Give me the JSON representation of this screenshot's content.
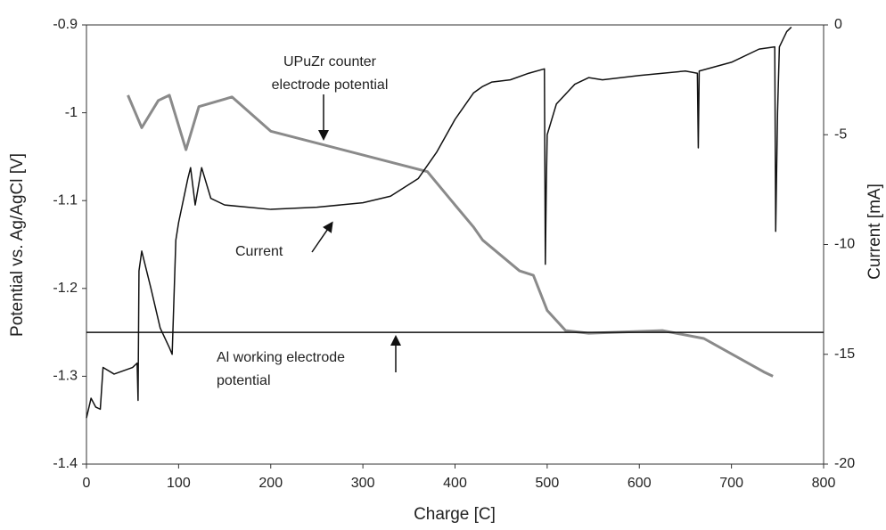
{
  "chart_data": {
    "type": "line",
    "xlabel": "Charge [C]",
    "ylabel": "Potential vs. Ag/AgCl [V]",
    "y2label": "Current  [mA]",
    "xlim": [
      0,
      800
    ],
    "xticks": [
      0,
      100,
      200,
      300,
      400,
      500,
      600,
      700,
      800
    ],
    "ylim": [
      -1.4,
      -0.9
    ],
    "yticks": [
      -1.4,
      -1.3,
      -1.2,
      -1.1,
      -1,
      -0.9
    ],
    "y2lim": [
      -20,
      0
    ],
    "y2ticks": [
      -20,
      -15,
      -10,
      -5,
      0
    ],
    "annotations": [
      {
        "lines": [
          "UPuZr counter",
          "electrode potential"
        ]
      },
      {
        "lines": [
          "Current"
        ]
      },
      {
        "lines": [
          "Al working electrode",
          "potential"
        ]
      }
    ],
    "series": [
      {
        "color": "#8a8a8a",
        "axis": "y",
        "x": [
          45,
          60,
          78,
          90,
          108,
          122,
          158,
          200,
          370,
          400,
          420,
          430,
          470,
          485,
          500,
          520,
          545,
          625,
          670,
          735,
          745
        ],
        "values": [
          -0.98,
          -1.017,
          -0.986,
          -0.98,
          -1.042,
          -0.993,
          -0.982,
          -1.021,
          -1.067,
          -1.105,
          -1.13,
          -1.145,
          -1.18,
          -1.185,
          -1.225,
          -1.248,
          -1.251,
          -1.248,
          -1.257,
          -1.295,
          -1.3
        ]
      },
      {
        "color": "#111111",
        "axis": "y",
        "x": [
          0,
          800
        ],
        "values": [
          -1.25,
          -1.25
        ]
      },
      {
        "color": "#111111",
        "axis": "y2",
        "x": [
          0,
          5,
          10,
          15,
          18,
          30,
          50,
          55,
          56,
          57,
          60,
          70,
          80,
          90,
          93,
          97,
          100,
          110,
          113,
          118,
          125,
          135,
          150,
          200,
          250,
          300,
          330,
          360,
          380,
          400,
          420,
          430,
          440,
          460,
          480,
          497,
          498,
          499,
          500,
          510,
          530,
          545,
          560,
          600,
          650,
          663,
          664,
          665,
          700,
          730,
          747,
          748,
          750,
          752,
          760,
          765
        ],
        "values": [
          -17.9,
          -17,
          -17.4,
          -17.5,
          -15.6,
          -15.9,
          -15.6,
          -15.4,
          -17.1,
          -11.2,
          -10.3,
          -12,
          -13.8,
          -14.7,
          -15,
          -9.8,
          -9,
          -7,
          -6.5,
          -8.2,
          -6.5,
          -7.9,
          -8.2,
          -8.4,
          -8.3,
          -8.1,
          -7.8,
          -7,
          -5.8,
          -4.3,
          -3.1,
          -2.8,
          -2.6,
          -2.5,
          -2.2,
          -2,
          -10.9,
          -7.5,
          -5,
          -3.6,
          -2.7,
          -2.4,
          -2.5,
          -2.3,
          -2.1,
          -2.2,
          -5.6,
          -2.1,
          -1.7,
          -1.1,
          -1,
          -9.4,
          -4,
          -1,
          -0.3,
          -0.1
        ]
      }
    ]
  }
}
